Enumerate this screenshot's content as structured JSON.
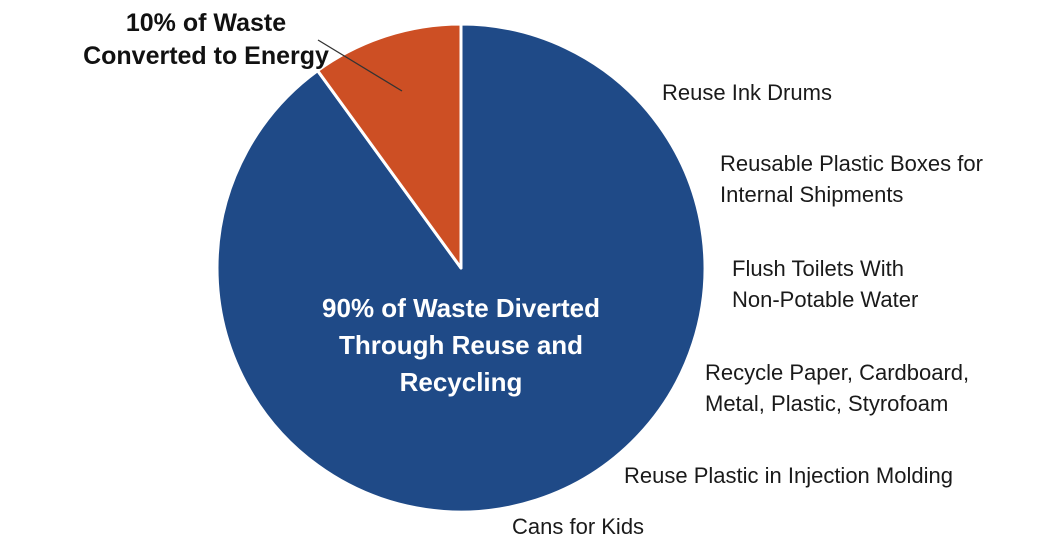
{
  "chart_data": {
    "type": "pie",
    "slices": [
      {
        "value": 90,
        "label_lines": [
          "90% of Waste Diverted",
          "Through Reuse and",
          "Recycling"
        ],
        "color": "#1f4a87"
      },
      {
        "value": 10,
        "label_lines": [
          "10% of Waste",
          "Converted to Energy"
        ],
        "color": "#cd4f24"
      }
    ],
    "annotations": [
      {
        "lines": [
          "Reuse Ink Drums"
        ]
      },
      {
        "lines": [
          "Reusable Plastic Boxes for",
          "Internal Shipments"
        ]
      },
      {
        "lines": [
          "Flush Toilets With",
          "Non-Potable Water"
        ]
      },
      {
        "lines": [
          "Recycle Paper, Cardboard,",
          "Metal, Plastic, Styrofoam"
        ]
      },
      {
        "lines": [
          "Reuse Plastic in Injection Molding"
        ]
      },
      {
        "lines": [
          "Cans for Kids"
        ]
      }
    ],
    "colors": {
      "diverted": "#1f4a87",
      "energy": "#cd4f24",
      "slice_border": "#ffffff",
      "leader": "#333333",
      "annotation_text": "#1a1a1a",
      "inner_label_text": "#ffffff",
      "outer_label_text": "#111111"
    }
  }
}
